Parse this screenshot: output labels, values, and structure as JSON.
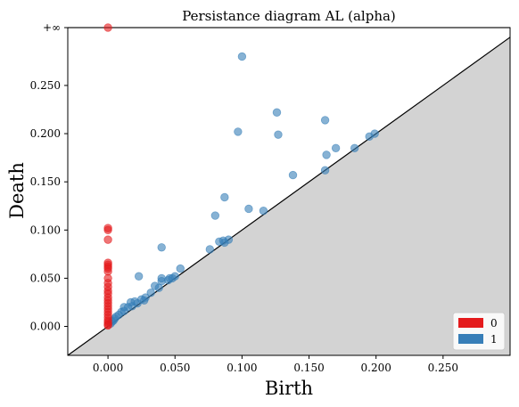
{
  "chart_data": {
    "type": "scatter",
    "title": "Persistance diagram AL (alpha)",
    "xlabel": "Birth",
    "ylabel": "Death",
    "xlim": [
      -0.03,
      0.3
    ],
    "ylim": [
      -0.03,
      0.31
    ],
    "infinity_label": "+∞",
    "infinity_value": 0.31,
    "xticks": [
      0.0,
      0.05,
      0.1,
      0.15,
      0.2,
      0.25
    ],
    "xtick_labels": [
      "0.000",
      "0.050",
      "0.100",
      "0.150",
      "0.200",
      "0.250"
    ],
    "yticks": [
      0.0,
      0.05,
      0.1,
      0.15,
      0.2,
      0.25
    ],
    "ytick_labels": [
      "0.000",
      "0.050",
      "0.100",
      "0.150",
      "0.200",
      "0.250"
    ],
    "legend_position": "bottom-right",
    "grid": false,
    "colors": {
      "series0": "#e41a1c",
      "series1": "#377eb8",
      "diagonal_fill": "#d3d3d3",
      "infinity_line": "#808080"
    },
    "series": [
      {
        "name": "0",
        "color": "#e41a1c",
        "points": [
          [
            0.0,
            "inf"
          ],
          [
            0.0,
            0.102
          ],
          [
            0.0,
            0.1
          ],
          [
            0.0,
            0.09
          ],
          [
            0.0,
            0.066
          ],
          [
            0.0,
            0.064
          ],
          [
            0.0,
            0.062
          ],
          [
            0.0,
            0.06
          ],
          [
            0.0,
            0.057
          ],
          [
            0.0,
            0.05
          ],
          [
            0.0,
            0.045
          ],
          [
            0.0,
            0.041
          ],
          [
            0.0,
            0.037
          ],
          [
            0.0,
            0.034
          ],
          [
            0.0,
            0.03
          ],
          [
            0.0,
            0.027
          ],
          [
            0.0,
            0.024
          ],
          [
            0.0,
            0.021
          ],
          [
            0.0,
            0.018
          ],
          [
            0.0,
            0.015
          ],
          [
            0.0,
            0.012
          ],
          [
            0.0,
            0.009
          ],
          [
            0.0,
            0.006
          ],
          [
            0.0,
            0.004
          ],
          [
            0.0,
            0.002
          ],
          [
            0.0,
            0.001
          ]
        ]
      },
      {
        "name": "1",
        "color": "#377eb8",
        "points": [
          [
            0.1,
            0.28
          ],
          [
            0.126,
            0.222
          ],
          [
            0.162,
            0.214
          ],
          [
            0.097,
            0.202
          ],
          [
            0.127,
            0.199
          ],
          [
            0.199,
            0.2
          ],
          [
            0.195,
            0.197
          ],
          [
            0.17,
            0.185
          ],
          [
            0.184,
            0.185
          ],
          [
            0.163,
            0.178
          ],
          [
            0.162,
            0.162
          ],
          [
            0.138,
            0.157
          ],
          [
            0.087,
            0.134
          ],
          [
            0.105,
            0.122
          ],
          [
            0.116,
            0.12
          ],
          [
            0.08,
            0.115
          ],
          [
            0.04,
            0.082
          ],
          [
            0.083,
            0.088
          ],
          [
            0.087,
            0.087
          ],
          [
            0.09,
            0.09
          ],
          [
            0.086,
            0.089
          ],
          [
            0.076,
            0.08
          ],
          [
            0.054,
            0.06
          ],
          [
            0.023,
            0.052
          ],
          [
            0.04,
            0.05
          ],
          [
            0.05,
            0.052
          ],
          [
            0.045,
            0.048
          ],
          [
            0.04,
            0.047
          ],
          [
            0.035,
            0.042
          ],
          [
            0.038,
            0.04
          ],
          [
            0.032,
            0.035
          ],
          [
            0.028,
            0.03
          ],
          [
            0.025,
            0.028
          ],
          [
            0.02,
            0.026
          ],
          [
            0.017,
            0.025
          ],
          [
            0.022,
            0.024
          ],
          [
            0.015,
            0.02
          ],
          [
            0.012,
            0.02
          ],
          [
            0.01,
            0.015
          ],
          [
            0.008,
            0.012
          ],
          [
            0.006,
            0.01
          ],
          [
            0.005,
            0.008
          ],
          [
            0.004,
            0.006
          ],
          [
            0.003,
            0.005
          ],
          [
            0.002,
            0.003
          ],
          [
            0.012,
            0.016
          ],
          [
            0.018,
            0.021
          ],
          [
            0.027,
            0.027
          ],
          [
            0.046,
            0.05
          ],
          [
            0.048,
            0.05
          ]
        ]
      }
    ]
  }
}
